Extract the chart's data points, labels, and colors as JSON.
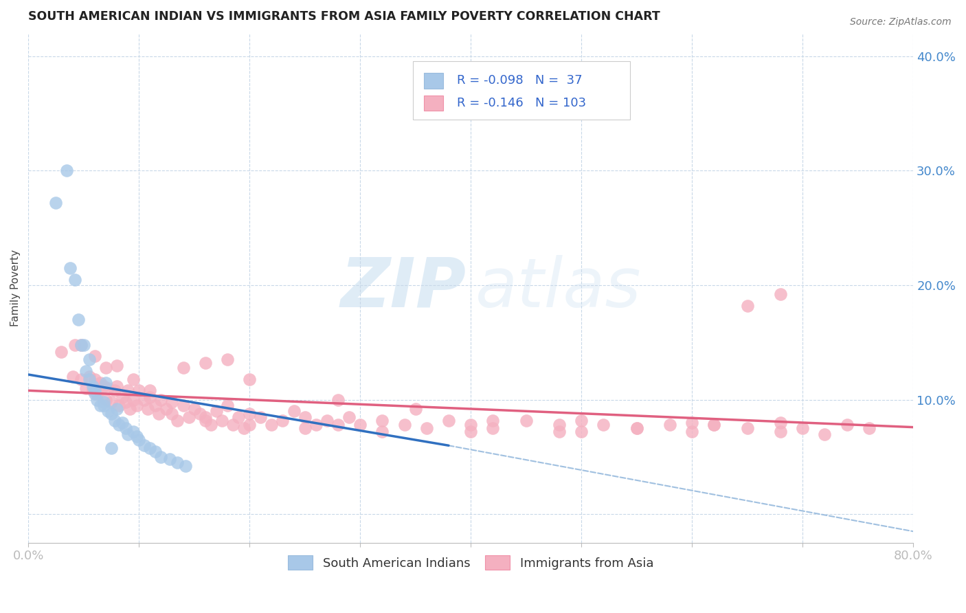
{
  "title": "SOUTH AMERICAN INDIAN VS IMMIGRANTS FROM ASIA FAMILY POVERTY CORRELATION CHART",
  "source": "Source: ZipAtlas.com",
  "ylabel": "Family Poverty",
  "xlim": [
    0.0,
    0.8
  ],
  "ylim": [
    -0.025,
    0.42
  ],
  "xticks": [
    0.0,
    0.1,
    0.2,
    0.3,
    0.4,
    0.5,
    0.6,
    0.7,
    0.8
  ],
  "xtick_labels": [
    "0.0%",
    "",
    "",
    "",
    "",
    "",
    "",
    "",
    "80.0%"
  ],
  "yticks": [
    0.0,
    0.1,
    0.2,
    0.3,
    0.4
  ],
  "ytick_labels": [
    "",
    "10.0%",
    "20.0%",
    "30.0%",
    "40.0%"
  ],
  "blue_color": "#a8c8e8",
  "pink_color": "#f4b0c0",
  "blue_line_color": "#3070c0",
  "pink_line_color": "#e06080",
  "blue_dashed_color": "#a0c0e0",
  "R_blue": -0.098,
  "N_blue": 37,
  "R_pink": -0.146,
  "N_pink": 103,
  "legend_label_blue": "South American Indians",
  "legend_label_pink": "Immigrants from Asia",
  "watermark_zip": "ZIP",
  "watermark_atlas": "atlas",
  "legend_text_color": "#3366cc",
  "title_color": "#222222",
  "source_color": "#777777",
  "ylabel_color": "#444444",
  "tick_color": "#4488cc",
  "grid_color": "#c8d8e8",
  "blue_x": [
    0.025,
    0.035,
    0.038,
    0.042,
    0.045,
    0.048,
    0.052,
    0.055,
    0.058,
    0.06,
    0.062,
    0.065,
    0.068,
    0.07,
    0.072,
    0.075,
    0.078,
    0.08,
    0.082,
    0.085,
    0.088,
    0.09,
    0.095,
    0.098,
    0.1,
    0.105,
    0.11,
    0.115,
    0.12,
    0.128,
    0.135,
    0.142,
    0.05,
    0.055,
    0.06,
    0.068,
    0.075
  ],
  "blue_y": [
    0.272,
    0.3,
    0.215,
    0.205,
    0.17,
    0.148,
    0.125,
    0.118,
    0.112,
    0.108,
    0.1,
    0.095,
    0.098,
    0.115,
    0.09,
    0.088,
    0.082,
    0.092,
    0.078,
    0.08,
    0.075,
    0.07,
    0.072,
    0.068,
    0.065,
    0.06,
    0.058,
    0.055,
    0.05,
    0.048,
    0.045,
    0.042,
    0.148,
    0.135,
    0.105,
    0.095,
    0.058
  ],
  "pink_x": [
    0.03,
    0.04,
    0.042,
    0.048,
    0.052,
    0.055,
    0.058,
    0.06,
    0.062,
    0.065,
    0.068,
    0.07,
    0.072,
    0.075,
    0.078,
    0.08,
    0.082,
    0.085,
    0.088,
    0.09,
    0.092,
    0.095,
    0.098,
    0.1,
    0.105,
    0.108,
    0.11,
    0.115,
    0.118,
    0.12,
    0.125,
    0.13,
    0.135,
    0.14,
    0.145,
    0.15,
    0.155,
    0.16,
    0.165,
    0.17,
    0.175,
    0.18,
    0.185,
    0.19,
    0.195,
    0.2,
    0.21,
    0.22,
    0.23,
    0.24,
    0.25,
    0.26,
    0.27,
    0.28,
    0.29,
    0.3,
    0.32,
    0.34,
    0.36,
    0.38,
    0.4,
    0.42,
    0.45,
    0.48,
    0.5,
    0.52,
    0.55,
    0.58,
    0.6,
    0.62,
    0.65,
    0.68,
    0.7,
    0.72,
    0.74,
    0.76,
    0.048,
    0.06,
    0.07,
    0.08,
    0.095,
    0.11,
    0.13,
    0.16,
    0.2,
    0.25,
    0.32,
    0.4,
    0.48,
    0.55,
    0.62,
    0.68,
    0.14,
    0.16,
    0.18,
    0.2,
    0.28,
    0.35,
    0.42,
    0.5,
    0.6,
    0.65,
    0.68
  ],
  "pink_y": [
    0.142,
    0.12,
    0.148,
    0.118,
    0.11,
    0.12,
    0.108,
    0.118,
    0.105,
    0.115,
    0.112,
    0.1,
    0.11,
    0.098,
    0.108,
    0.112,
    0.095,
    0.102,
    0.098,
    0.108,
    0.092,
    0.1,
    0.095,
    0.108,
    0.1,
    0.092,
    0.102,
    0.095,
    0.088,
    0.1,
    0.092,
    0.088,
    0.082,
    0.095,
    0.085,
    0.092,
    0.088,
    0.082,
    0.078,
    0.09,
    0.082,
    0.095,
    0.078,
    0.085,
    0.075,
    0.088,
    0.085,
    0.078,
    0.082,
    0.09,
    0.085,
    0.078,
    0.082,
    0.078,
    0.085,
    0.078,
    0.082,
    0.078,
    0.075,
    0.082,
    0.078,
    0.075,
    0.082,
    0.078,
    0.072,
    0.078,
    0.075,
    0.078,
    0.072,
    0.078,
    0.075,
    0.072,
    0.075,
    0.07,
    0.078,
    0.075,
    0.148,
    0.138,
    0.128,
    0.13,
    0.118,
    0.108,
    0.098,
    0.085,
    0.078,
    0.075,
    0.072,
    0.072,
    0.072,
    0.075,
    0.078,
    0.08,
    0.128,
    0.132,
    0.135,
    0.118,
    0.1,
    0.092,
    0.082,
    0.082,
    0.08,
    0.182,
    0.192
  ]
}
